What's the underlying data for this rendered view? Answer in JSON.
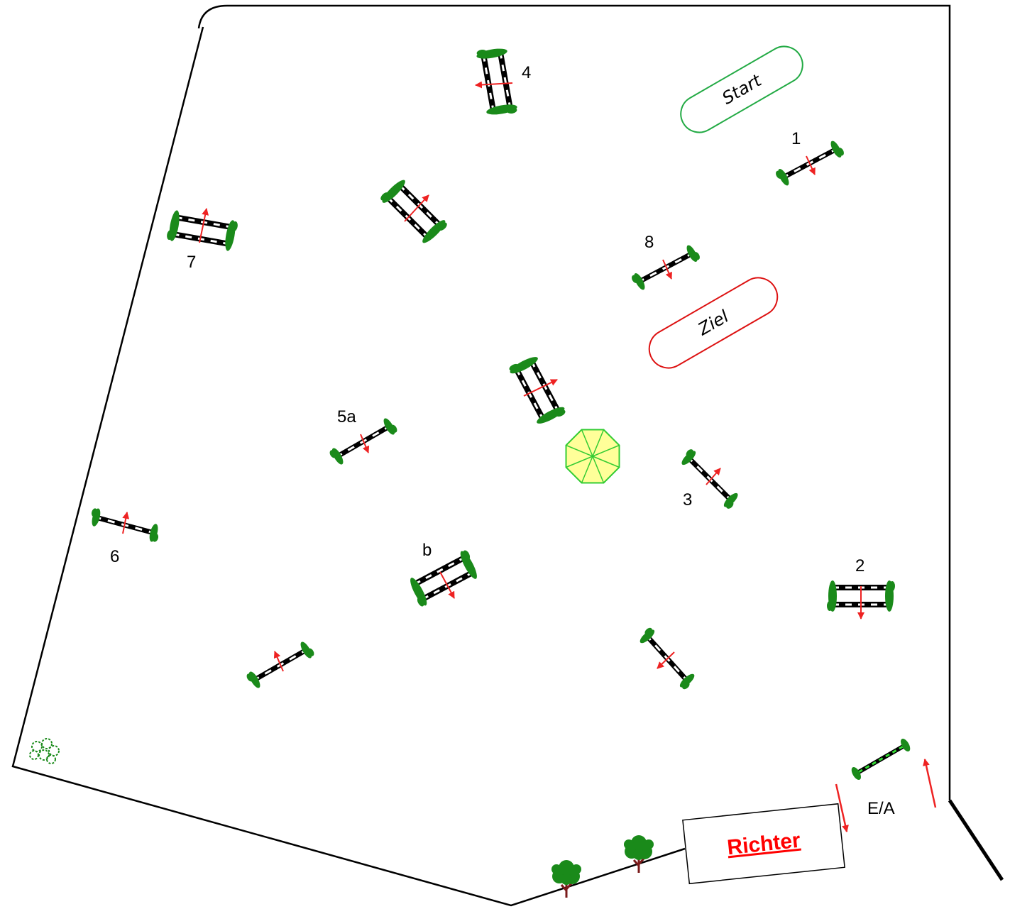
{
  "labels": {
    "fence_1": "1",
    "fence_2": "2",
    "fence_3": "3",
    "fence_4": "4",
    "fence_5a": "5a",
    "fence_5b": "b",
    "fence_6": "6",
    "fence_7": "7",
    "fence_8": "8",
    "entry_exit": "E/A"
  },
  "zones": {
    "start": "Start",
    "finish": "Ziel"
  },
  "judge_box": "Richter",
  "colors": {
    "start_zone": "#22aa44",
    "finish_zone": "#dd1111",
    "judge_text": "#ff0000",
    "shrub": "#1a8a1a",
    "umbrella_fill": "#ffff99",
    "umbrella_stroke": "#33cc33",
    "direction_arrow": "#ee2222"
  },
  "icons": {
    "fence": "show-jump-fence",
    "oxer": "double-rail-oxer",
    "tree": "deciduous-tree",
    "umbrella": "umbrella-octagon",
    "flowers": "flower-bush",
    "arrow": "direction-arrow"
  }
}
